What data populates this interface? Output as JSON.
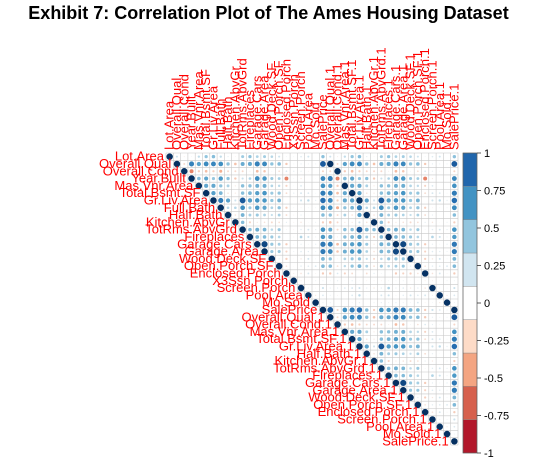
{
  "chart_data": {
    "type": "heatmap",
    "subtype": "correlation-plot-upper-triangle",
    "title": "Exhibit 7: Correlation Plot of The Ames Housing Dataset",
    "variables": [
      "Lot.Area",
      "Overall.Qual",
      "Overall.Cond",
      "Year.Built",
      "Mas.Vnr.Area",
      "Total.Bsmt.SF",
      "Gr.Liv.Area",
      "Full.Bath",
      "Half.Bath",
      "Kitchen.AbvGr",
      "TotRms.AbvGrd",
      "Fireplaces",
      "Garage.Cars",
      "Garage.Area",
      "Wood.Deck.SF",
      "Open.Porch.SF",
      "Enclosed.Porch",
      "X3Ssn.Porch",
      "Screen.Porch",
      "Pool.Area",
      "Mo.Sold",
      "SalePrice",
      "Overall.Qual.1",
      "Overall.Cond.1",
      "Mas.Vnr.Area.1",
      "Total.Bsmt.SF.1",
      "Gr.Liv.Area.1",
      "Half.Bath.1",
      "Kitchen.AbvGr.1",
      "TotRms.AbvGrd.1",
      "Fireplaces.1",
      "Garage.Cars.1",
      "Garage.Area.1",
      "Wood.Deck.SF.1",
      "Open.Porch.SF.1",
      "Enclosed.Porch.1",
      "Screen.Porch.1",
      "Pool.Area.1",
      "Mo.Sold.1",
      "SalePrice.1"
    ],
    "top_labels": [
      "Lot.Area",
      "Overall.Qual",
      "Overall.Cond",
      "Year.Built",
      "Mas.Vnr.Area",
      "Total.Bsmt.SF",
      "Gr.Liv.Area",
      "Full.Bath",
      "Half.Bath",
      "Kitchen.AbvGr",
      "TotRms.AbvGrd",
      "Fireplaces",
      "Garage.Cars",
      "Garage.Area",
      "Wood.Deck.SF",
      "Open.Porch.SF",
      "Enclosed.Porch",
      "X3Ssn.Porch",
      "Screen.Porch",
      "Pool.Area",
      "Mo.Sold",
      "SalePrice",
      "Overall.Qual.1",
      "Overall.Cond.1",
      "Mas.Vnr.Area.1",
      "Total.Bsmt.SF.1",
      "Gr.Liv.Area.1",
      "Half.Bath.1",
      "Kitchen.AbvGr.1",
      "TotRms.AbvGrd.1",
      "Fireplaces.1",
      "Garage.Cars.1",
      "Garage.Area.1",
      "Wood.Deck.SF.1",
      "Open.Porch.SF.1",
      "Enclosed.Porch.1",
      "Screen.Porch.1",
      "Pool.Area.1",
      "Mo.Sold.1",
      "SalePrice.1"
    ],
    "base_correlations": [
      [
        1.0,
        0.1,
        -0.03,
        0.02,
        0.13,
        0.25,
        0.29,
        0.13,
        0.04,
        -0.02,
        0.22,
        0.26,
        0.18,
        0.21,
        0.16,
        0.1,
        0.02,
        0.02,
        0.06,
        0.09,
        0.0,
        0.27
      ],
      [
        0.1,
        1.0,
        -0.09,
        0.6,
        0.43,
        0.55,
        0.57,
        0.52,
        0.27,
        -0.16,
        0.38,
        0.39,
        0.6,
        0.56,
        0.26,
        0.3,
        -0.14,
        0.02,
        0.04,
        0.03,
        0.03,
        0.8
      ],
      [
        -0.03,
        -0.09,
        1.0,
        -0.37,
        -0.13,
        -0.17,
        -0.12,
        -0.22,
        -0.09,
        -0.09,
        -0.09,
        -0.03,
        -0.18,
        -0.15,
        0.02,
        -0.07,
        0.07,
        0.04,
        0.04,
        -0.02,
        0.0,
        -0.1
      ],
      [
        0.02,
        0.6,
        -0.37,
        1.0,
        0.31,
        0.41,
        0.24,
        0.47,
        0.27,
        -0.14,
        0.11,
        0.17,
        0.54,
        0.48,
        0.23,
        0.2,
        -0.37,
        0.02,
        -0.04,
        0.0,
        0.01,
        0.56
      ],
      [
        0.13,
        0.43,
        -0.13,
        0.31,
        1.0,
        0.4,
        0.4,
        0.26,
        0.19,
        -0.04,
        0.28,
        0.27,
        0.36,
        0.37,
        0.17,
        0.14,
        -0.11,
        0.01,
        0.07,
        0.0,
        0.0,
        0.51
      ],
      [
        0.25,
        0.55,
        -0.17,
        0.41,
        0.4,
        1.0,
        0.44,
        0.33,
        -0.06,
        -0.04,
        0.28,
        0.33,
        0.44,
        0.49,
        0.23,
        0.25,
        -0.08,
        0.04,
        0.08,
        0.07,
        0.02,
        0.63
      ],
      [
        0.29,
        0.57,
        -0.12,
        0.24,
        0.4,
        0.44,
        1.0,
        0.63,
        0.43,
        0.1,
        0.81,
        0.45,
        0.49,
        0.48,
        0.25,
        0.34,
        0.0,
        0.01,
        0.1,
        0.14,
        0.04,
        0.71
      ],
      [
        0.13,
        0.52,
        -0.22,
        0.47,
        0.26,
        0.33,
        0.63,
        1.0,
        0.16,
        0.16,
        0.53,
        0.23,
        0.48,
        0.41,
        0.18,
        0.26,
        -0.12,
        0.02,
        -0.02,
        0.02,
        0.02,
        0.55
      ],
      [
        0.04,
        0.27,
        -0.09,
        0.27,
        0.19,
        -0.06,
        0.43,
        0.16,
        1.0,
        -0.06,
        0.34,
        0.2,
        0.23,
        0.18,
        0.12,
        0.19,
        -0.08,
        -0.02,
        0.04,
        0.01,
        0.0,
        0.29
      ],
      [
        -0.02,
        -0.16,
        -0.09,
        -0.14,
        -0.04,
        -0.04,
        0.1,
        0.16,
        -0.06,
        1.0,
        0.29,
        -0.11,
        -0.04,
        -0.06,
        -0.09,
        -0.07,
        0.04,
        -0.02,
        -0.05,
        -0.01,
        0.03,
        -0.12
      ],
      [
        0.22,
        0.38,
        -0.09,
        0.11,
        0.28,
        0.28,
        0.81,
        0.53,
        0.34,
        0.29,
        1.0,
        0.3,
        0.36,
        0.33,
        0.15,
        0.23,
        0.02,
        -0.02,
        0.05,
        0.08,
        0.04,
        0.5
      ],
      [
        0.26,
        0.39,
        -0.03,
        0.17,
        0.27,
        0.33,
        0.45,
        0.23,
        0.2,
        -0.11,
        0.3,
        1.0,
        0.32,
        0.3,
        0.23,
        0.16,
        0.0,
        0.02,
        0.17,
        0.1,
        0.03,
        0.47
      ],
      [
        0.18,
        0.6,
        -0.18,
        0.54,
        0.36,
        0.44,
        0.49,
        0.48,
        0.23,
        -0.04,
        0.36,
        0.32,
        1.0,
        0.89,
        0.24,
        0.2,
        -0.13,
        0.02,
        0.04,
        0.02,
        0.04,
        0.65
      ],
      [
        0.21,
        0.56,
        -0.15,
        0.48,
        0.37,
        0.49,
        0.48,
        0.41,
        0.18,
        -0.06,
        0.33,
        0.3,
        0.89,
        1.0,
        0.24,
        0.23,
        -0.11,
        0.03,
        0.06,
        0.05,
        0.03,
        0.64
      ],
      [
        0.16,
        0.26,
        0.02,
        0.23,
        0.17,
        0.23,
        0.25,
        0.18,
        0.12,
        -0.09,
        0.15,
        0.23,
        0.24,
        0.24,
        1.0,
        0.04,
        -0.12,
        -0.01,
        -0.05,
        0.09,
        0.02,
        0.33
      ],
      [
        0.1,
        0.3,
        -0.07,
        0.2,
        0.14,
        0.25,
        0.34,
        0.26,
        0.19,
        -0.07,
        0.23,
        0.16,
        0.2,
        0.23,
        0.04,
        1.0,
        -0.06,
        -0.01,
        0.05,
        0.06,
        0.07,
        0.31
      ],
      [
        0.02,
        -0.14,
        0.07,
        -0.37,
        -0.11,
        -0.08,
        0.0,
        -0.12,
        -0.08,
        0.04,
        0.02,
        0.0,
        -0.13,
        -0.11,
        -0.12,
        -0.06,
        1.0,
        -0.03,
        -0.06,
        0.08,
        -0.02,
        -0.13
      ],
      [
        0.02,
        0.02,
        0.04,
        0.02,
        0.01,
        0.04,
        0.01,
        0.02,
        -0.02,
        -0.02,
        -0.02,
        0.02,
        0.02,
        0.03,
        -0.01,
        -0.01,
        -0.03,
        1.0,
        -0.03,
        -0.01,
        0.03,
        0.03
      ],
      [
        0.06,
        0.04,
        0.04,
        -0.04,
        0.07,
        0.08,
        0.1,
        -0.02,
        0.04,
        -0.05,
        0.05,
        0.17,
        0.04,
        0.06,
        -0.05,
        0.05,
        -0.06,
        -0.03,
        1.0,
        0.03,
        0.02,
        0.11
      ],
      [
        0.09,
        0.03,
        -0.02,
        0.0,
        0.0,
        0.07,
        0.14,
        0.02,
        0.01,
        -0.01,
        0.08,
        0.1,
        0.02,
        0.05,
        0.09,
        0.06,
        0.08,
        -0.01,
        0.03,
        1.0,
        -0.04,
        0.07
      ],
      [
        0.0,
        0.03,
        0.0,
        0.01,
        0.0,
        0.02,
        0.04,
        0.02,
        0.0,
        0.03,
        0.04,
        0.03,
        0.04,
        0.03,
        0.02,
        0.07,
        -0.02,
        0.03,
        0.02,
        -0.04,
        1.0,
        0.03
      ],
      [
        0.27,
        0.8,
        -0.1,
        0.56,
        0.51,
        0.63,
        0.71,
        0.55,
        0.29,
        -0.12,
        0.5,
        0.47,
        0.65,
        0.64,
        0.33,
        0.31,
        -0.13,
        0.03,
        0.11,
        0.07,
        0.03,
        1.0
      ]
    ],
    "duplicate_base_index": [
      1,
      2,
      4,
      5,
      6,
      8,
      9,
      10,
      11,
      12,
      13,
      14,
      15,
      16,
      18,
      19,
      20,
      21
    ],
    "legend": {
      "ticks": [
        "1",
        "0.75",
        "0.5",
        "0.25",
        "0",
        "-0.25",
        "-0.5",
        "-0.75",
        "-1"
      ],
      "range": [
        -1,
        1
      ],
      "colors": [
        "#b2182b",
        "#d6604d",
        "#f4a582",
        "#fddbc7",
        "#ffffff",
        "#d1e5f0",
        "#92c5de",
        "#4393c3",
        "#2166ac"
      ],
      "placement": "right"
    },
    "method": "circle",
    "label_color": "#ff0000",
    "grid_color": "#c8c8c8"
  }
}
